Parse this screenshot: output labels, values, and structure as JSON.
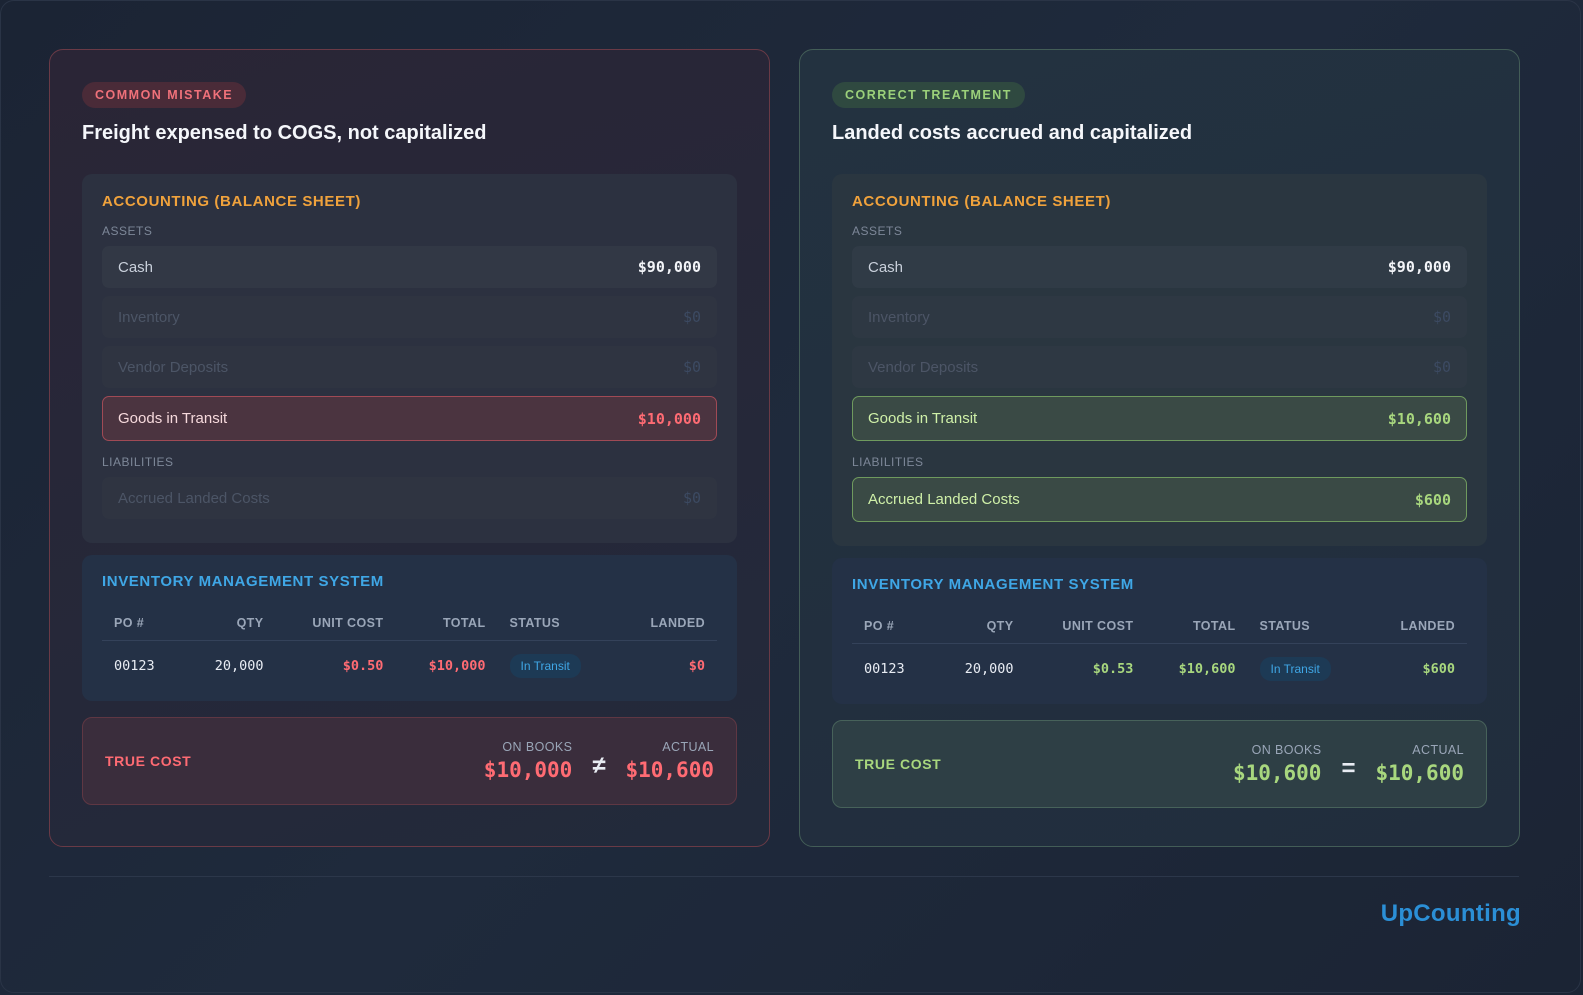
{
  "panels": {
    "bad": {
      "badge": "COMMON MISTAKE",
      "title": "Freight expensed to COGS, not capitalized",
      "accounting": {
        "title": "ACCOUNTING (BALANCE SHEET)",
        "assets_label": "ASSETS",
        "assets": [
          {
            "label": "Cash",
            "value": "$90,000"
          },
          {
            "label": "Inventory",
            "value": "$0"
          },
          {
            "label": "Vendor Deposits",
            "value": "$0"
          },
          {
            "label": "Goods in Transit",
            "value": "$10,000"
          }
        ],
        "liabilities_label": "LIABILITIES",
        "liabilities": [
          {
            "label": "Accrued Landed Costs",
            "value": "$0"
          }
        ]
      },
      "ims": {
        "title": "INVENTORY MANAGEMENT SYSTEM",
        "columns": [
          "PO #",
          "QTY",
          "UNIT COST",
          "TOTAL",
          "STATUS",
          "LANDED"
        ],
        "row": {
          "po": "00123",
          "qty": "20,000",
          "unit_cost": "$0.50",
          "total": "$10,000",
          "status": "In Transit",
          "landed": "$0"
        }
      },
      "true_cost": {
        "label": "TRUE COST",
        "on_books_label": "ON BOOKS",
        "on_books": "$10,000",
        "operator": "≠",
        "actual_label": "ACTUAL",
        "actual": "$10,600"
      }
    },
    "good": {
      "badge": "CORRECT TREATMENT",
      "title": "Landed costs accrued and capitalized",
      "accounting": {
        "title": "ACCOUNTING (BALANCE SHEET)",
        "assets_label": "ASSETS",
        "assets": [
          {
            "label": "Cash",
            "value": "$90,000"
          },
          {
            "label": "Inventory",
            "value": "$0"
          },
          {
            "label": "Vendor Deposits",
            "value": "$0"
          },
          {
            "label": "Goods in Transit",
            "value": "$10,600"
          }
        ],
        "liabilities_label": "LIABILITIES",
        "liabilities": [
          {
            "label": "Accrued Landed Costs",
            "value": "$600"
          }
        ]
      },
      "ims": {
        "title": "INVENTORY MANAGEMENT SYSTEM",
        "columns": [
          "PO #",
          "QTY",
          "UNIT COST",
          "TOTAL",
          "STATUS",
          "LANDED"
        ],
        "row": {
          "po": "00123",
          "qty": "20,000",
          "unit_cost": "$0.53",
          "total": "$10,600",
          "status": "In Transit",
          "landed": "$600"
        }
      },
      "true_cost": {
        "label": "TRUE COST",
        "on_books_label": "ON BOOKS",
        "on_books": "$10,600",
        "operator": "=",
        "actual_label": "ACTUAL",
        "actual": "$10,600"
      }
    }
  },
  "brand": "UpCounting",
  "colors": {
    "error": "#ff6b73",
    "success": "#a8d77e",
    "accounting_title": "#f0a23c",
    "ims_title": "#3fa7e6",
    "brand": "#2b8fd6"
  }
}
